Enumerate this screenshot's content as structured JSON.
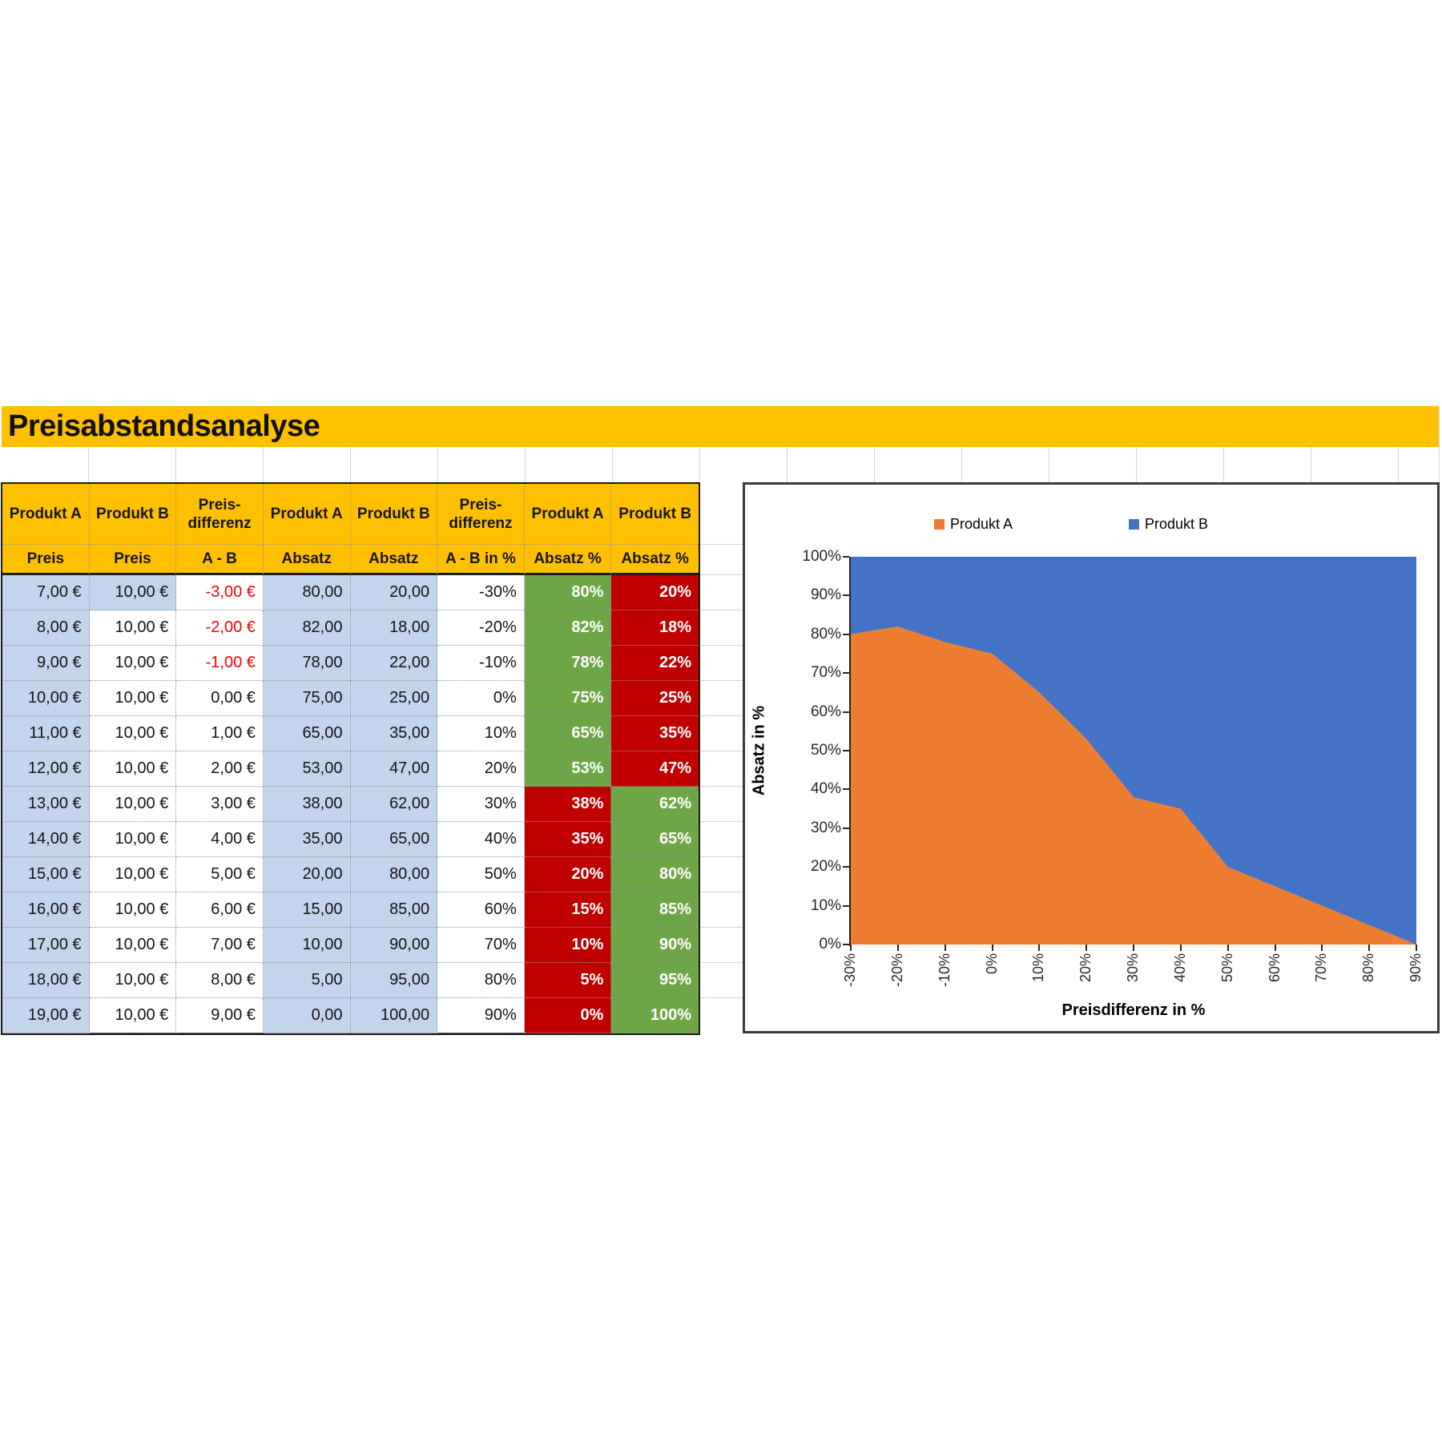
{
  "page_title": "Preisabstandsanalyse",
  "table": {
    "header_row1": [
      "Produkt A",
      "Produkt B",
      "Preis-\ndifferenz",
      "Produkt A",
      "Produkt B",
      "Preis-\ndifferenz",
      "Produkt A",
      "Produkt B"
    ],
    "header_row2": [
      "Preis",
      "Preis",
      "A - B",
      "Absatz",
      "Absatz",
      "A - B in %",
      "Absatz %",
      "Absatz %"
    ],
    "rows": [
      [
        "7,00 €",
        "10,00 €",
        "-3,00 €",
        "80,00",
        "20,00",
        "-30%",
        "80%",
        "20%"
      ],
      [
        "8,00 €",
        "10,00 €",
        "-2,00 €",
        "82,00",
        "18,00",
        "-20%",
        "82%",
        "18%"
      ],
      [
        "9,00 €",
        "10,00 €",
        "-1,00 €",
        "78,00",
        "22,00",
        "-10%",
        "78%",
        "22%"
      ],
      [
        "10,00 €",
        "10,00 €",
        "0,00 €",
        "75,00",
        "25,00",
        "0%",
        "75%",
        "25%"
      ],
      [
        "11,00 €",
        "10,00 €",
        "1,00 €",
        "65,00",
        "35,00",
        "10%",
        "65%",
        "35%"
      ],
      [
        "12,00 €",
        "10,00 €",
        "2,00 €",
        "53,00",
        "47,00",
        "20%",
        "53%",
        "47%"
      ],
      [
        "13,00 €",
        "10,00 €",
        "3,00 €",
        "38,00",
        "62,00",
        "30%",
        "38%",
        "62%"
      ],
      [
        "14,00 €",
        "10,00 €",
        "4,00 €",
        "35,00",
        "65,00",
        "40%",
        "35%",
        "65%"
      ],
      [
        "15,00 €",
        "10,00 €",
        "5,00 €",
        "20,00",
        "80,00",
        "50%",
        "20%",
        "80%"
      ],
      [
        "16,00 €",
        "10,00 €",
        "6,00 €",
        "15,00",
        "85,00",
        "60%",
        "15%",
        "85%"
      ],
      [
        "17,00 €",
        "10,00 €",
        "7,00 €",
        "10,00",
        "90,00",
        "70%",
        "10%",
        "90%"
      ],
      [
        "18,00 €",
        "10,00 €",
        "8,00 €",
        "5,00",
        "95,00",
        "80%",
        "5%",
        "95%"
      ],
      [
        "19,00 €",
        "10,00 €",
        "9,00 €",
        "0,00",
        "100,00",
        "90%",
        "0%",
        "100%"
      ]
    ]
  },
  "chart_data": {
    "type": "area",
    "stacked": true,
    "categories": [
      "-30%",
      "-20%",
      "-10%",
      "0%",
      "10%",
      "20%",
      "30%",
      "40%",
      "50%",
      "60%",
      "70%",
      "80%",
      "90%"
    ],
    "series": [
      {
        "name": "Produkt A",
        "color": "#ED7D31",
        "values": [
          80,
          82,
          78,
          75,
          65,
          53,
          38,
          35,
          20,
          15,
          10,
          5,
          0
        ]
      },
      {
        "name": "Produkt B",
        "color": "#4472C4",
        "values": [
          20,
          18,
          22,
          25,
          35,
          47,
          62,
          65,
          80,
          85,
          90,
          95,
          100
        ]
      }
    ],
    "xlabel": "Preisdifferenz in %",
    "ylabel": "Absatz in %",
    "ylim": [
      0,
      100
    ],
    "ytick_labels": [
      "0%",
      "10%",
      "20%",
      "30%",
      "40%",
      "50%",
      "60%",
      "70%",
      "80%",
      "90%",
      "100%"
    ],
    "legend_position": "top",
    "grid": false
  },
  "colors": {
    "title_bar_bg": "#FFC000",
    "header_bg": "#FFC000",
    "cell_blue": "#C2D5EC",
    "cell_green": "#6EA647",
    "cell_red": "#C00000",
    "negative_text": "#FF0000",
    "series_a": "#ED7D31",
    "series_b": "#4472C4"
  }
}
